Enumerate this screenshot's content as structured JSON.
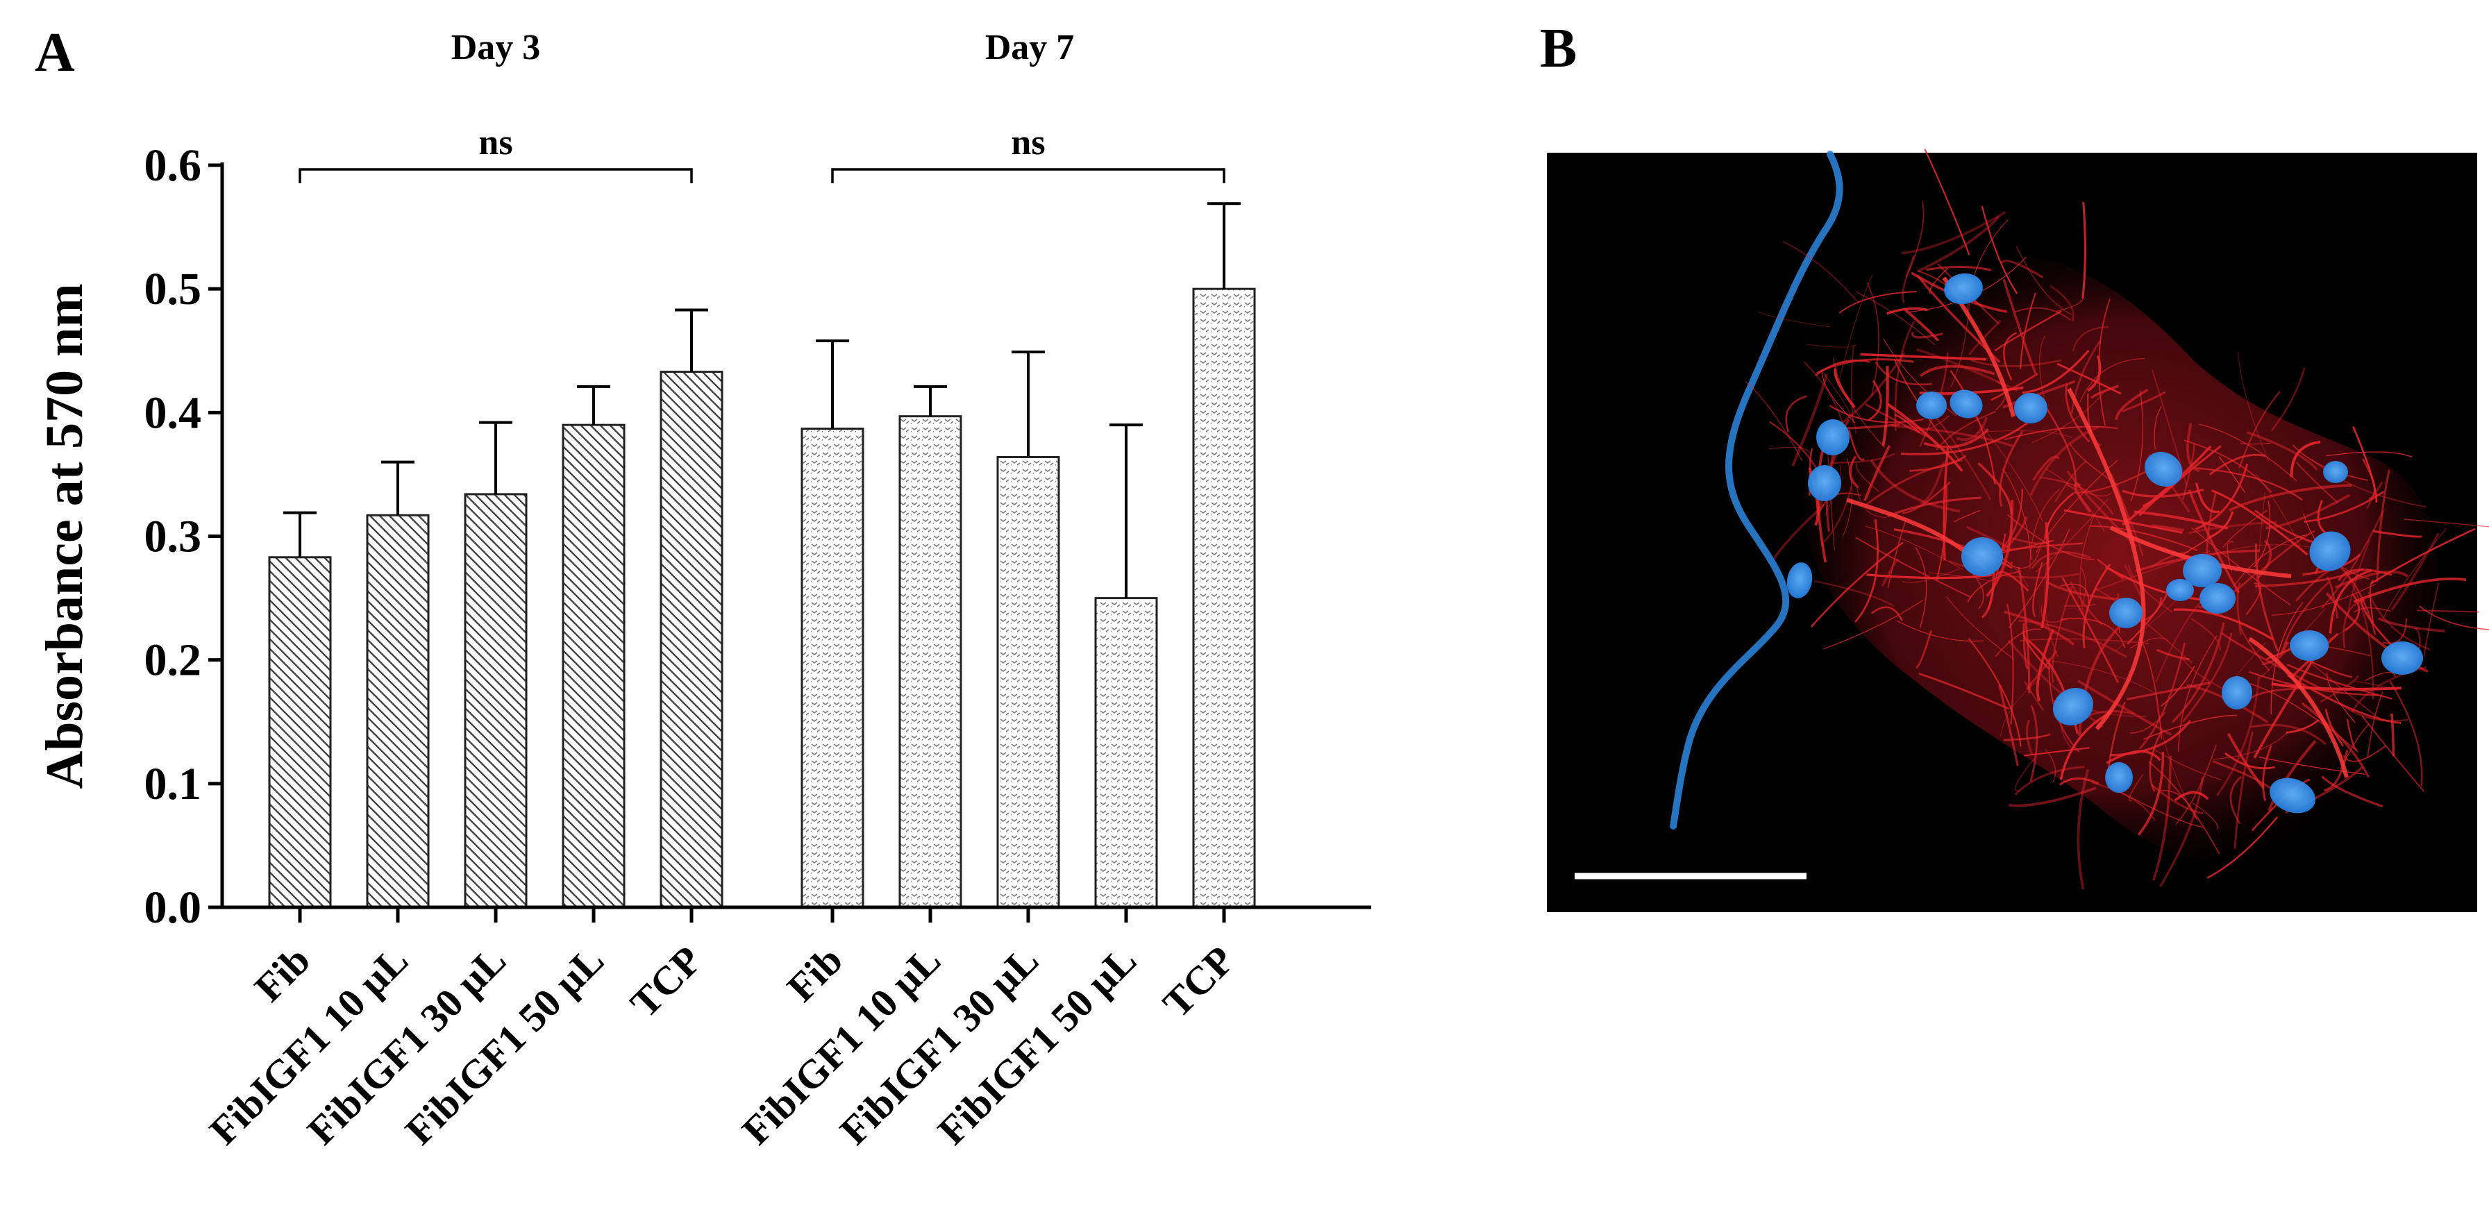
{
  "panels": {
    "a_label": "A",
    "b_label": "B"
  },
  "chart_data": {
    "type": "bar",
    "ylabel": "Absorbance at 570 nm",
    "xlabel": "",
    "ylim": [
      0.0,
      0.6
    ],
    "yticks": [
      "0.0",
      "0.1",
      "0.2",
      "0.3",
      "0.4",
      "0.5",
      "0.6"
    ],
    "grid": false,
    "groups": [
      {
        "title": "Day 3",
        "significance": "ns",
        "pattern": "diagonal-hatch",
        "categories": [
          "Fib",
          "FibIGF1 10 µL",
          "FibIGF1 30 µL",
          "FibIGF1 50 µL",
          "TCP"
        ],
        "values": [
          0.283,
          0.317,
          0.334,
          0.39,
          0.433
        ],
        "errors": [
          0.036,
          0.043,
          0.058,
          0.031,
          0.05
        ]
      },
      {
        "title": "Day 7",
        "significance": "ns",
        "pattern": "dotted-wave",
        "categories": [
          "Fib",
          "FibIGF1 10 µL",
          "FibIGF1 30 µL",
          "FibIGF1 50 µL",
          "TCP"
        ],
        "values": [
          0.387,
          0.397,
          0.364,
          0.25,
          0.5
        ],
        "errors": [
          0.071,
          0.024,
          0.085,
          0.14,
          0.069
        ]
      }
    ]
  },
  "micrograph": {
    "background": "#000000",
    "cytoskeleton_color": "#e8262d",
    "nuclei_color": "#2f8fe8",
    "fiber_color": "#2a7fd4",
    "scale_bar_color": "#ffffff"
  }
}
